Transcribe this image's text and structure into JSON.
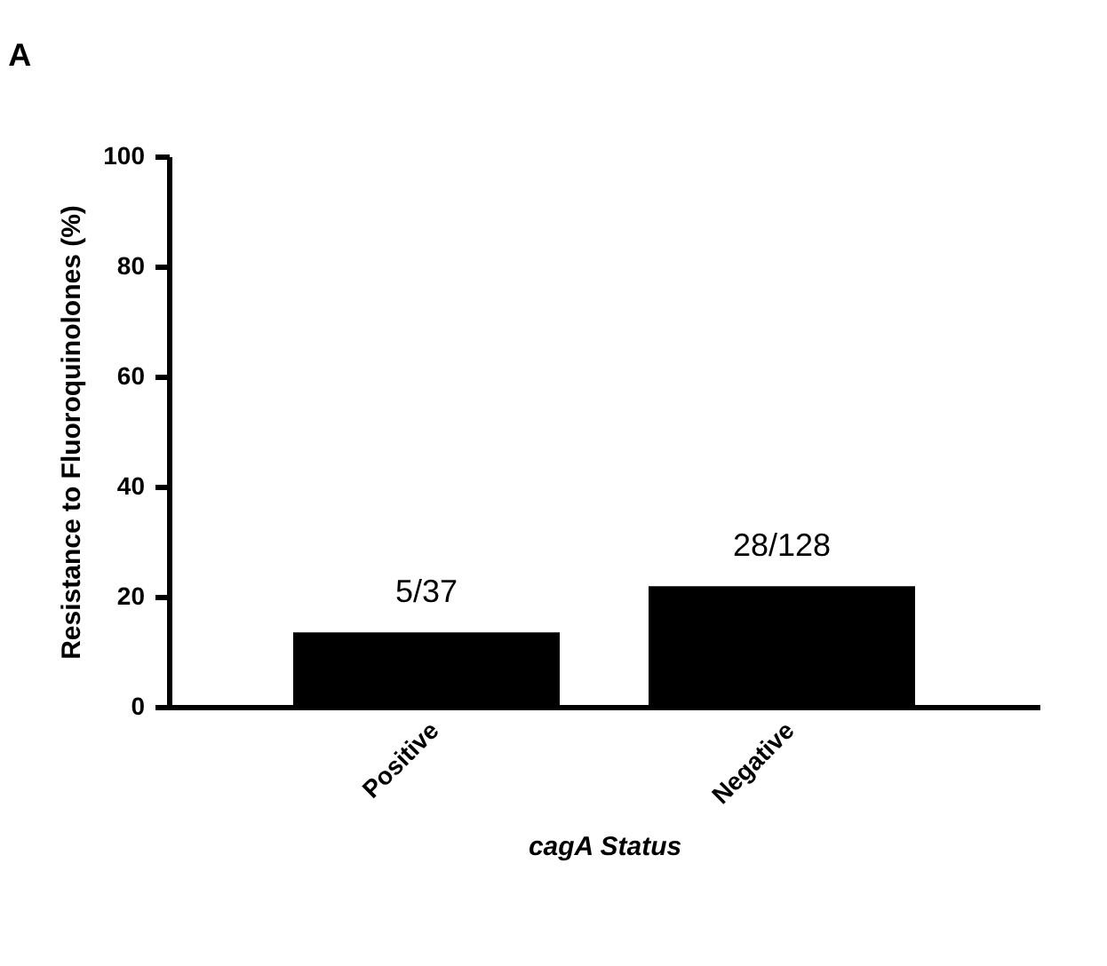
{
  "chart_data": {
    "type": "bar",
    "title": "A",
    "xlabel": "cagA Status",
    "ylabel": "Resistance to Fluoroquinolones (%)",
    "categories": [
      "Positive",
      "Negative"
    ],
    "values": [
      13.5,
      21.9
    ],
    "color": "#000000",
    "value_labels": [
      "5/37",
      "28/128"
    ],
    "ylim": [
      0,
      100
    ],
    "yticks": [
      0,
      20,
      40,
      60,
      80,
      100
    ],
    "grid": false
  }
}
